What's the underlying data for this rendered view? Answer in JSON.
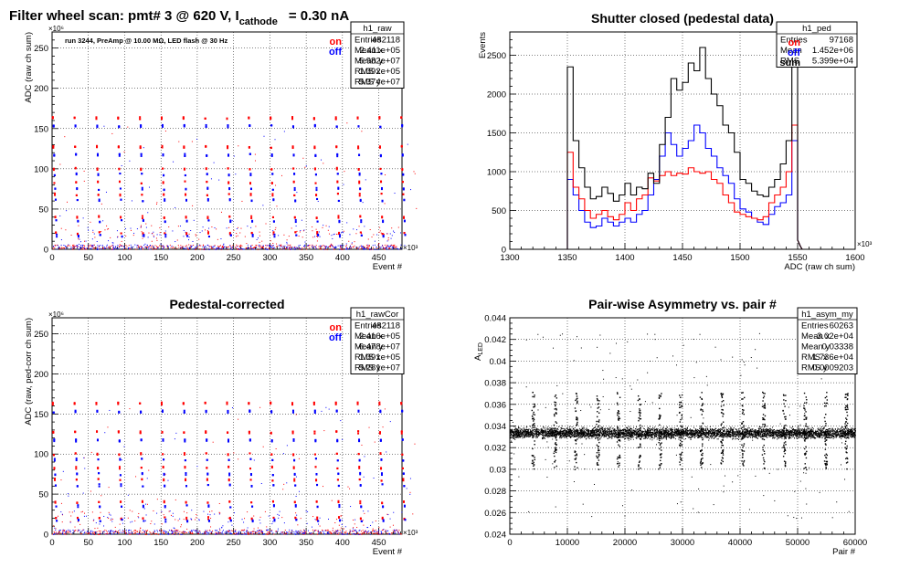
{
  "main_title": {
    "prefix": "Filter wheel scan: pmt#   3 @   620 V, I",
    "subscript": "cathode",
    "suffix": "= 0.30 nA"
  },
  "panels": [
    {
      "title": "",
      "stats": {
        "name": "h1_raw",
        "rows": [
          [
            "Entries",
            "482118"
          ],
          [
            "Mean x",
            "2.411e+05"
          ],
          [
            "Mean y",
            "5.982e+07"
          ],
          [
            "RMS x",
            "1.392e+05"
          ],
          [
            "RMS y",
            "5.374e+07"
          ]
        ]
      },
      "legend": [
        {
          "label": "on",
          "color": "#ff0000"
        },
        {
          "label": "off",
          "color": "#0000ff"
        }
      ],
      "annotation": "run 3244, PreAmp @ 10.00 MΩ, LED flash @   30 Hz",
      "xlabel": "Event #",
      "ylabel": "ADC (raw ch sum)",
      "x_exponent": "×10³",
      "y_exponent": "×10⁶",
      "xticks": [
        "0",
        "50",
        "100",
        "150",
        "200",
        "250",
        "300",
        "350",
        "400",
        "450"
      ],
      "yticks": [
        "0",
        "50",
        "100",
        "150",
        "200",
        "250"
      ]
    },
    {
      "title": "Shutter closed (pedestal data)",
      "stats": {
        "name": "h1_ped",
        "rows": [
          [
            "Entries",
            "97168"
          ],
          [
            "Mean",
            "1.452e+06"
          ],
          [
            "RMS",
            "5.399e+04"
          ]
        ]
      },
      "legend": [
        {
          "label": "on",
          "color": "#ff0000"
        },
        {
          "label": "off",
          "color": "#0000ff"
        },
        {
          "label": "sum",
          "color": "#000000"
        }
      ],
      "xlabel": "ADC (raw ch sum)",
      "ylabel": "Events",
      "x_exponent": "×10³",
      "xticks": [
        "1300",
        "1350",
        "1400",
        "1450",
        "1500",
        "1550",
        "1600"
      ],
      "yticks": [
        "0",
        "500",
        "1000",
        "1500",
        "2000",
        "2500"
      ]
    },
    {
      "title": "Pedestal-corrected",
      "stats": {
        "name": "h1_rawCor",
        "rows": [
          [
            "Entries",
            "482118"
          ],
          [
            "Mean x",
            "2.416e+05"
          ],
          [
            "Mean y",
            "6.478e+07"
          ],
          [
            "RMS x",
            "1.391e+05"
          ],
          [
            "RMS y",
            "5.281e+07"
          ]
        ]
      },
      "legend": [
        {
          "label": "on",
          "color": "#ff0000"
        },
        {
          "label": "off",
          "color": "#0000ff"
        }
      ],
      "xlabel": "Event #",
      "ylabel": "ADC (raw, ped-corr ch sum)",
      "x_exponent": "×10³",
      "y_exponent": "×10⁶",
      "xticks": [
        "0",
        "50",
        "100",
        "150",
        "200",
        "250",
        "300",
        "350",
        "400",
        "450"
      ],
      "yticks": [
        "0",
        "50",
        "100",
        "150",
        "200",
        "250"
      ]
    },
    {
      "title": "Pair-wise Asymmetry vs. pair #",
      "stats": {
        "name": "h1_asym_my",
        "rows": [
          [
            "Entries",
            "60263"
          ],
          [
            "Mean x",
            "3.02e+04"
          ],
          [
            "Mean y",
            "0.03338"
          ],
          [
            "RMS x",
            "1.736e+04"
          ],
          [
            "RMS y",
            "0.0009203"
          ]
        ]
      },
      "xlabel": "Pair #",
      "ylabel": "A_LED",
      "xticks": [
        "0",
        "10000",
        "20000",
        "30000",
        "40000",
        "50000",
        "60000"
      ],
      "yticks": [
        "0.024",
        "0.026",
        "0.028",
        "0.03",
        "0.032",
        "0.034",
        "0.036",
        "0.038",
        "0.04",
        "0.042",
        "0.044"
      ]
    }
  ],
  "chart_data": [
    {
      "type": "scatter",
      "name": "raw ADC vs event",
      "xlim": [
        0,
        482
      ],
      "ylim": [
        0,
        270
      ],
      "grid": true,
      "legend_position": "top-right",
      "cycle_period": 30,
      "cycle_start": 1,
      "series": [
        {
          "name": "on",
          "color": "#ff0000",
          "levels": [
            163,
            127,
            100,
            83,
            68,
            40,
            20
          ]
        },
        {
          "name": "off",
          "color": "#0000ff",
          "levels": [
            153,
            117,
            93,
            75,
            61,
            35,
            17
          ]
        }
      ]
    },
    {
      "type": "histogram",
      "name": "pedestal distribution",
      "xlim": [
        1300,
        1600
      ],
      "ylim": [
        0,
        2800
      ],
      "grid": true,
      "legend_position": "top-right",
      "bin_edges_start": 1350,
      "bin_width": 5,
      "series": [
        {
          "name": "sum",
          "color": "#000000",
          "values": [
            2350,
            1400,
            1050,
            800,
            650,
            680,
            800,
            720,
            620,
            700,
            850,
            700,
            800,
            780,
            980,
            850,
            1350,
            1700,
            2200,
            2050,
            2150,
            2400,
            2300,
            2600,
            2200,
            2000,
            1850,
            1600,
            1500,
            1250,
            900,
            850,
            750,
            700,
            680,
            800,
            900,
            1100,
            1400,
            2400
          ]
        },
        {
          "name": "on",
          "color": "#ff0000",
          "values": [
            1250,
            800,
            650,
            500,
            400,
            450,
            500,
            420,
            380,
            450,
            600,
            500,
            650,
            700,
            920,
            880,
            950,
            1000,
            950,
            980,
            970,
            1050,
            1000,
            980,
            1000,
            900,
            850,
            700,
            600,
            480,
            450,
            420,
            400,
            380,
            420,
            600,
            700,
            800,
            1000,
            1600
          ]
        },
        {
          "name": "off",
          "color": "#0000ff",
          "values": [
            900,
            700,
            500,
            350,
            280,
            300,
            400,
            350,
            300,
            350,
            400,
            350,
            450,
            500,
            700,
            900,
            1200,
            1500,
            1350,
            1200,
            1300,
            1400,
            1600,
            1500,
            1300,
            1200,
            1050,
            950,
            850,
            650,
            520,
            480,
            400,
            350,
            320,
            450,
            550,
            600,
            700,
            1400
          ]
        }
      ]
    },
    {
      "type": "scatter",
      "name": "pedestal-corrected ADC vs event",
      "xlim": [
        0,
        482
      ],
      "ylim": [
        0,
        270
      ],
      "grid": true,
      "legend_position": "top-right",
      "cycle_period": 30,
      "cycle_start": 1,
      "series": [
        {
          "name": "on",
          "color": "#ff0000",
          "levels": [
            163,
            127,
            100,
            83,
            68,
            40,
            20
          ]
        },
        {
          "name": "off",
          "color": "#0000ff",
          "levels": [
            153,
            117,
            93,
            75,
            61,
            35,
            17
          ]
        }
      ]
    },
    {
      "type": "scatter",
      "name": "asymmetry vs pair",
      "xlim": [
        0,
        60000
      ],
      "ylim": [
        0.024,
        0.044
      ],
      "grid": true,
      "band": {
        "center": 0.03338,
        "half_width": 0.0007
      },
      "spike_positions": [
        4000,
        7800,
        11400,
        15200,
        18800,
        22400,
        26000,
        29600,
        33200,
        36800,
        40400,
        44000,
        47600,
        51200,
        54800,
        58400
      ],
      "spike_low": 0.03,
      "spike_high": 0.0372,
      "color": "#000000"
    }
  ]
}
